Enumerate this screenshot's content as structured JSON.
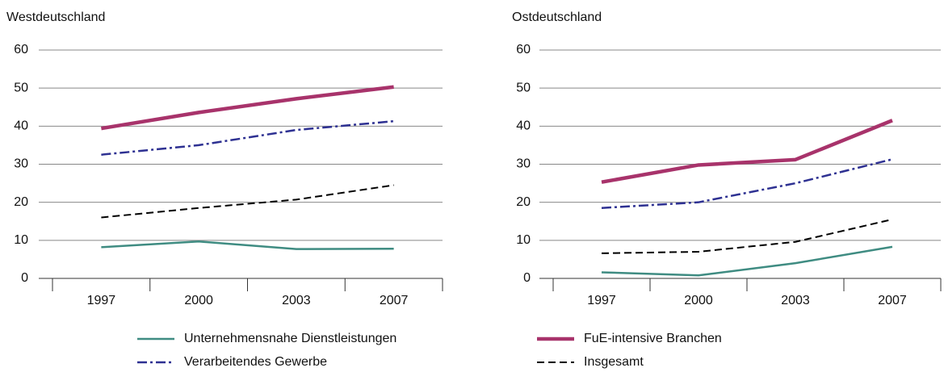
{
  "chart_data": [
    {
      "type": "line",
      "title": "Westdeutschland",
      "categories": [
        "1997",
        "2000",
        "2003",
        "2007"
      ],
      "ylim": [
        0,
        60
      ],
      "yticks": [
        0,
        10,
        20,
        30,
        40,
        50,
        60
      ],
      "grid": true,
      "series": [
        {
          "name": "Unternehmensnahe Dienstleistungen",
          "color": "#3f8c82",
          "style": "solid",
          "values": [
            8.2,
            9.7,
            7.7,
            7.8
          ]
        },
        {
          "name": "FuE-intensive Branchen",
          "color": "#a8336b",
          "style": "thick",
          "values": [
            39.4,
            43.6,
            47.2,
            50.3
          ]
        },
        {
          "name": "Verarbeitendes Gewerbe",
          "color": "#2e3192",
          "style": "dashdot",
          "values": [
            32.5,
            35,
            39,
            41.3
          ]
        },
        {
          "name": "Insgesamt",
          "color": "#000000",
          "style": "dashed",
          "values": [
            16,
            18.5,
            20.7,
            24.5
          ]
        }
      ]
    },
    {
      "type": "line",
      "title": "Ostdeutschland",
      "categories": [
        "1997",
        "2000",
        "2003",
        "2007"
      ],
      "ylim": [
        0,
        60
      ],
      "yticks": [
        0,
        10,
        20,
        30,
        40,
        50,
        60
      ],
      "grid": true,
      "series": [
        {
          "name": "Unternehmensnahe Dienstleistungen",
          "color": "#3f8c82",
          "style": "solid",
          "values": [
            1.6,
            0.8,
            4,
            8.3
          ]
        },
        {
          "name": "FuE-intensive Branchen",
          "color": "#a8336b",
          "style": "thick",
          "values": [
            25.3,
            29.8,
            31.2,
            41.5
          ]
        },
        {
          "name": "Verarbeitendes Gewerbe",
          "color": "#2e3192",
          "style": "dashdot",
          "values": [
            18.5,
            20,
            25,
            31.3
          ]
        },
        {
          "name": "Insgesamt",
          "color": "#000000",
          "style": "dashed",
          "values": [
            6.6,
            7,
            9.6,
            15.5
          ]
        }
      ]
    }
  ]
}
